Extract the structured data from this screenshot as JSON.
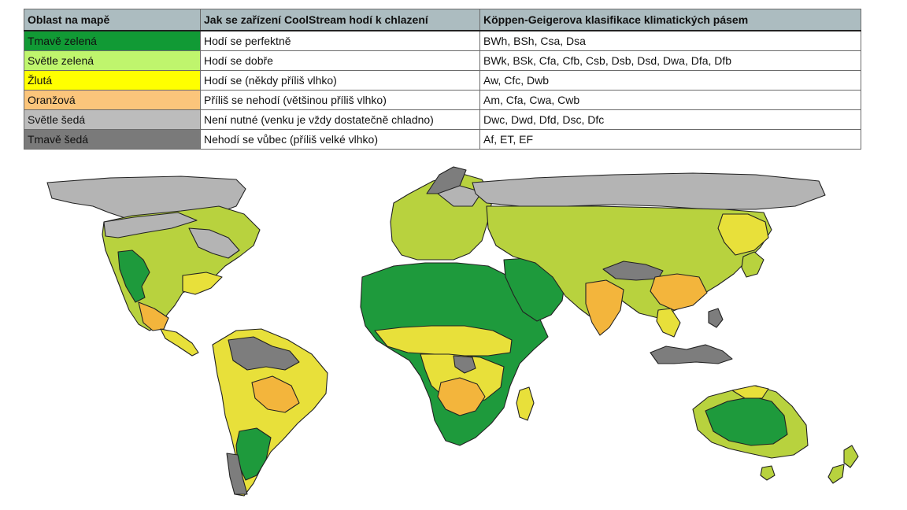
{
  "table": {
    "headers": [
      "Oblast na mapě",
      "Jak se zařízení CoolStream hodí k chlazení",
      "Köppen-Geigerova klasifikace klimatických pásem"
    ],
    "rows": [
      {
        "area": "Tmavě zelená",
        "suitability": "Hodí se perfektně",
        "koppen": "BWh, BSh, Csa, Dsa",
        "color": "#119a35"
      },
      {
        "area": "Světle zelená",
        "suitability": "Hodí se dobře",
        "koppen": "BWk, BSk, Cfa, Cfb, Csb, Dsb, Dsd, Dwa, Dfa, Dfb",
        "color": "#bff56d"
      },
      {
        "area": "Žlutá",
        "suitability": "Hodí se (někdy příliš vlhko)",
        "koppen": "Aw, Cfc, Dwb",
        "color": "#ffff00"
      },
      {
        "area": "Oranžová",
        "suitability": "Příliš se nehodí (většinou příliš vlhko)",
        "koppen": "Am, Cfa, Cwa, Cwb",
        "color": "#fbc57b"
      },
      {
        "area": "Světle šedá",
        "suitability": "Není nutné (venku je vždy dostatečně chladno)",
        "koppen": "Dwc, Dwd, Dfd, Dsc, Dfc",
        "color": "#bcbcbc"
      },
      {
        "area": "Tmavě šedá",
        "suitability": "Nehodí se vůbec (příliš velké vlhko)",
        "koppen": "Af, ET, EF",
        "color": "#7a7a7a"
      }
    ]
  },
  "map": {
    "colors": {
      "dark_green": "#1e9a3c",
      "light_green": "#b8d23e",
      "yellow": "#e8e03a",
      "orange": "#f3b53c",
      "light_gray": "#b4b4b4",
      "dark_gray": "#7d7d7d",
      "border": "#222222"
    }
  }
}
